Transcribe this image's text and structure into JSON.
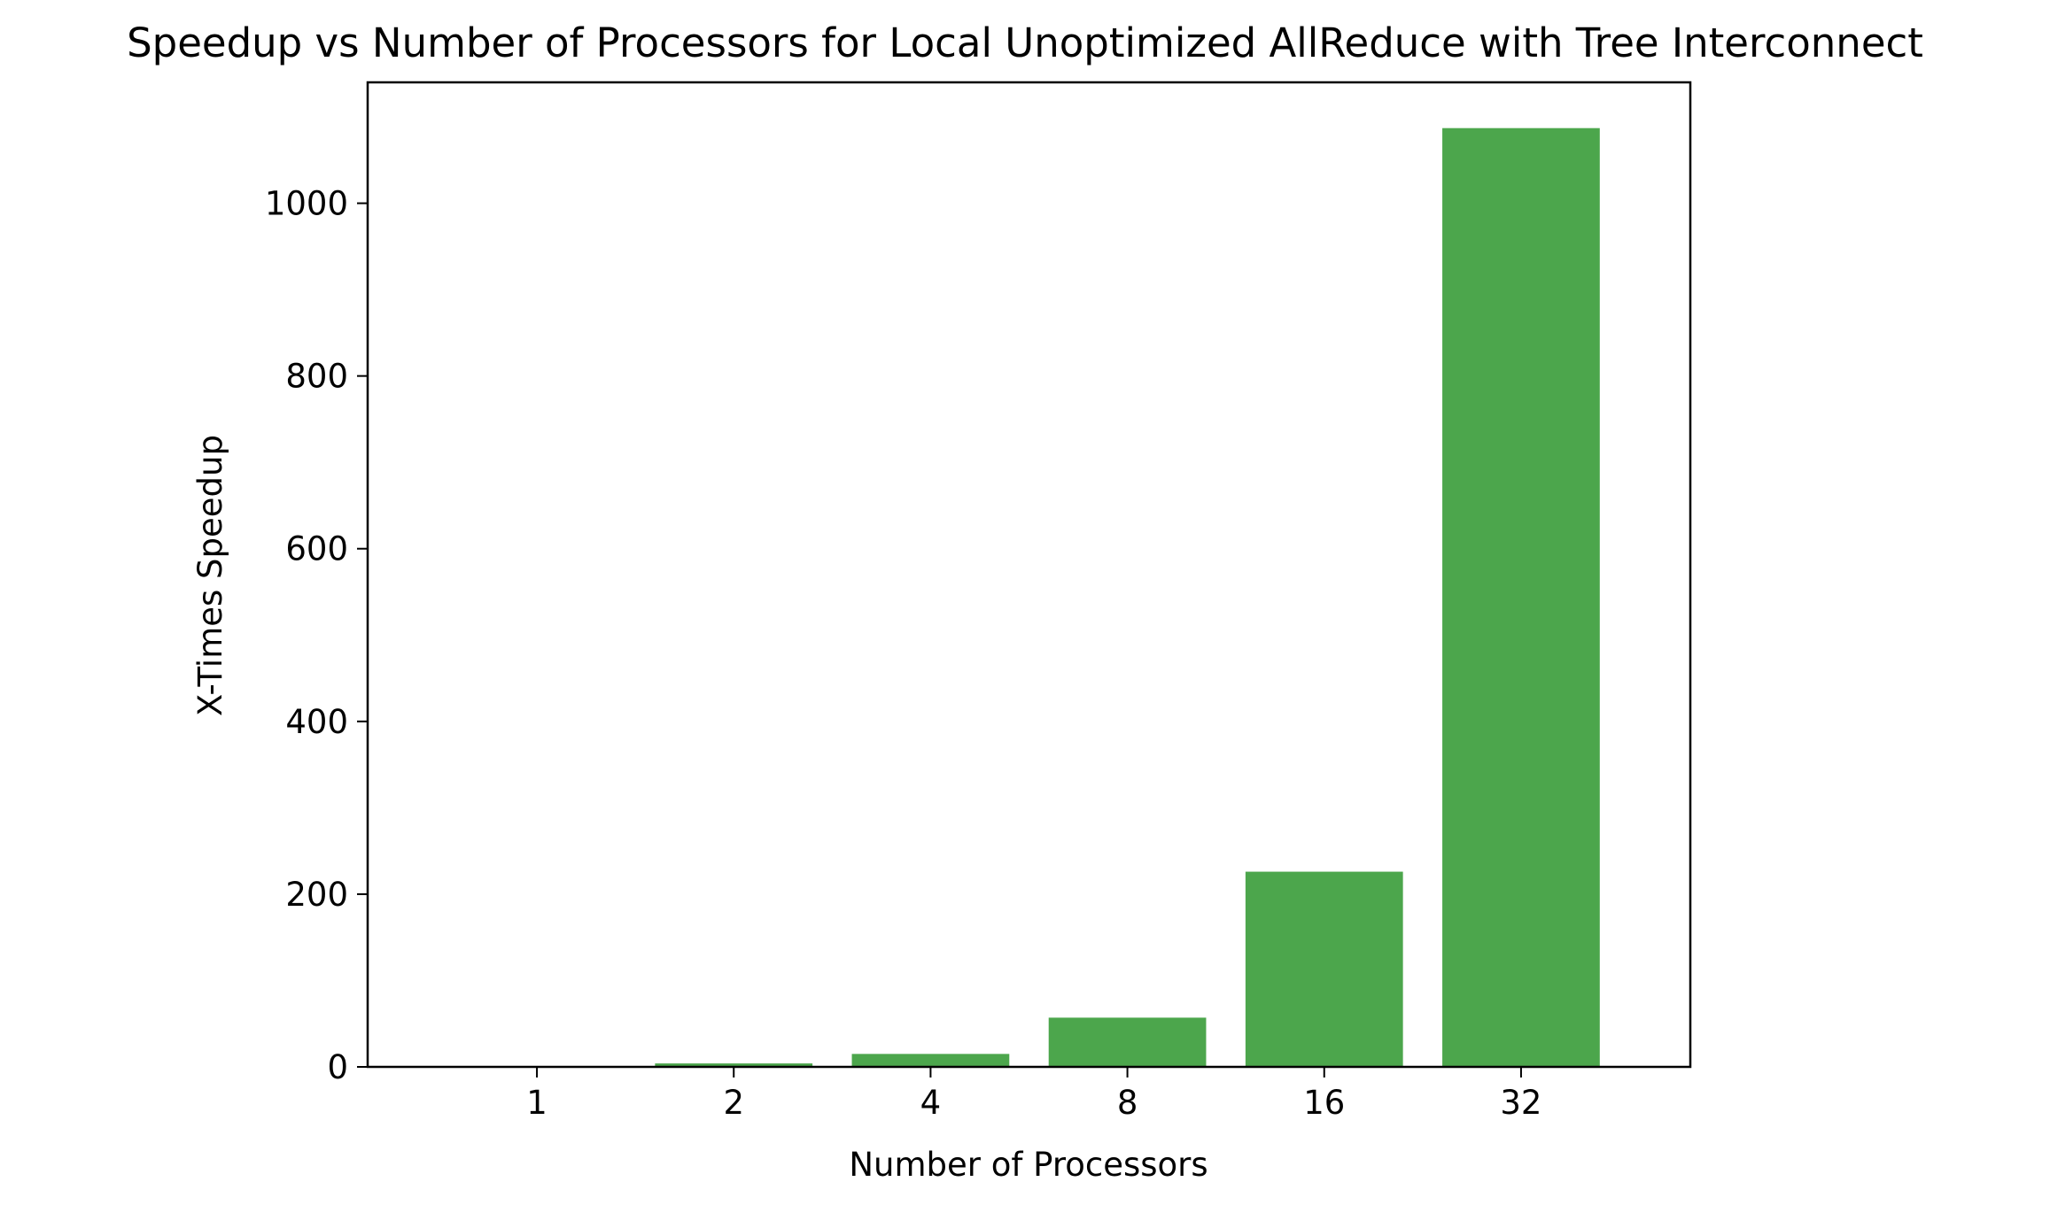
{
  "chart_data": {
    "type": "bar",
    "title": "Speedup vs Number of Processors for Local Unoptimized AllReduce with Tree Interconnect",
    "xlabel": "Number of Processors",
    "ylabel": "X-Times Speedup",
    "categories": [
      "1",
      "2",
      "4",
      "8",
      "16",
      "32"
    ],
    "values": [
      1,
      4,
      15,
      57,
      226,
      1087
    ],
    "ylim": [
      0,
      1140
    ],
    "yticks": [
      0,
      200,
      400,
      600,
      800,
      1000
    ],
    "bar_color": "#4ca64c",
    "grid": false,
    "legend": "none"
  }
}
